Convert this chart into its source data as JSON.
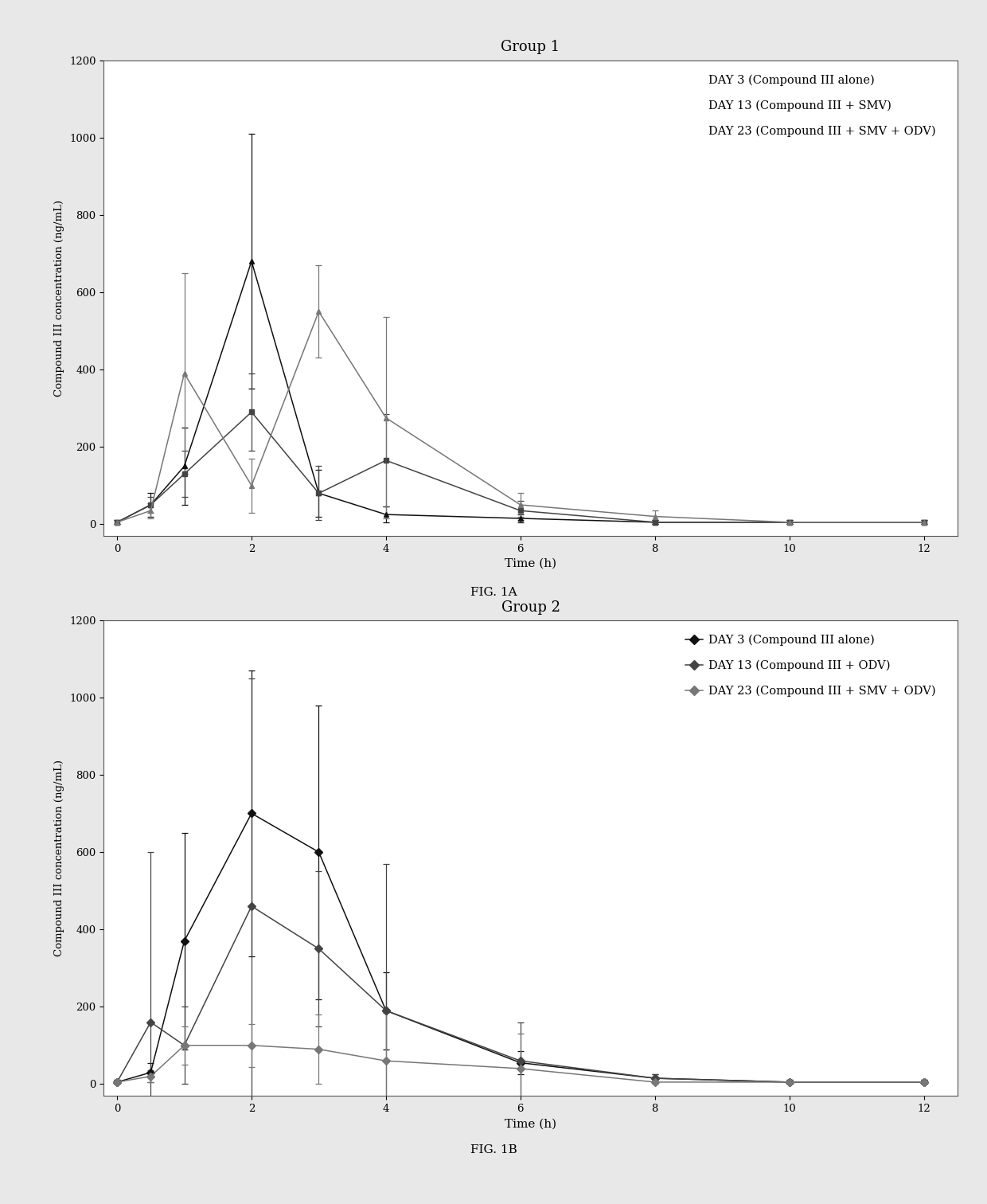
{
  "fig1a": {
    "title": "Group 1",
    "xlabel": "Time (h)",
    "ylabel": "Compound III concentration (ng/mL)",
    "xlim": [
      -0.2,
      12.5
    ],
    "ylim": [
      -30,
      1200
    ],
    "yticks": [
      0,
      200,
      400,
      600,
      800,
      1000,
      1200
    ],
    "xticks": [
      0,
      2,
      4,
      6,
      8,
      10,
      12
    ],
    "series": [
      {
        "label": "DAY 3 (Compound III alone)",
        "x": [
          0,
          0.5,
          1,
          2,
          3,
          4,
          6,
          8,
          10,
          12
        ],
        "y": [
          5,
          50,
          150,
          680,
          80,
          25,
          15,
          5,
          5,
          5
        ],
        "yerr": [
          5,
          30,
          100,
          330,
          60,
          20,
          10,
          5,
          5,
          5
        ],
        "marker": "^",
        "linestyle": "-",
        "color": "#111111"
      },
      {
        "label": "DAY 13 (Compound III + SMV)",
        "x": [
          0,
          0.5,
          1,
          2,
          3,
          4,
          6,
          8,
          10,
          12
        ],
        "y": [
          5,
          50,
          130,
          290,
          80,
          165,
          35,
          5,
          5,
          5
        ],
        "yerr": [
          5,
          20,
          60,
          100,
          70,
          120,
          25,
          5,
          5,
          5
        ],
        "marker": "s",
        "linestyle": "-",
        "color": "#444444"
      },
      {
        "label": "DAY 23 (Compound III + SMV + ODV)",
        "x": [
          0,
          0.5,
          1,
          2,
          3,
          4,
          6,
          8,
          10,
          12
        ],
        "y": [
          5,
          35,
          390,
          100,
          550,
          275,
          50,
          20,
          5,
          5
        ],
        "yerr": [
          5,
          20,
          260,
          70,
          120,
          260,
          30,
          15,
          5,
          5
        ],
        "marker": "^",
        "linestyle": "-",
        "color": "#777777"
      }
    ],
    "legend_labels": [
      "DAY 3 (Compound III alone)",
      "DAY 13 (Compound III + SMV)",
      "DAY 23 (Compound III + SMV + ODV)"
    ],
    "show_legend_markers": false,
    "fig_label": "FIG. 1A"
  },
  "fig1b": {
    "title": "Group 2",
    "xlabel": "Time (h)",
    "ylabel": "Compound III concentration (ng/mL)",
    "xlim": [
      -0.2,
      12.5
    ],
    "ylim": [
      -30,
      1200
    ],
    "yticks": [
      0,
      200,
      400,
      600,
      800,
      1000,
      1200
    ],
    "xticks": [
      0,
      2,
      4,
      6,
      8,
      10,
      12
    ],
    "series": [
      {
        "label": "DAY 3 (Compound III alone)",
        "x": [
          0,
          0.5,
          1,
          2,
          3,
          4,
          6,
          8,
          10,
          12
        ],
        "y": [
          5,
          30,
          370,
          700,
          600,
          190,
          55,
          15,
          5,
          5
        ],
        "yerr": [
          5,
          25,
          280,
          370,
          380,
          100,
          30,
          10,
          5,
          5
        ],
        "marker": "D",
        "linestyle": "-",
        "color": "#111111"
      },
      {
        "label": "DAY 13 (Compound III + ODV)",
        "x": [
          0,
          0.5,
          1,
          2,
          3,
          4,
          6,
          8,
          10,
          12
        ],
        "y": [
          5,
          160,
          100,
          460,
          350,
          190,
          60,
          15,
          5,
          5
        ],
        "yerr": [
          5,
          440,
          100,
          590,
          200,
          380,
          100,
          10,
          5,
          5
        ],
        "marker": "D",
        "linestyle": "-",
        "color": "#444444"
      },
      {
        "label": "DAY 23 (Compound III + SMV + ODV)",
        "x": [
          0,
          0.5,
          1,
          2,
          3,
          4,
          6,
          8,
          10,
          12
        ],
        "y": [
          5,
          20,
          100,
          100,
          90,
          60,
          40,
          5,
          5,
          5
        ],
        "yerr": [
          5,
          15,
          50,
          55,
          90,
          125,
          90,
          5,
          5,
          5
        ],
        "marker": "D",
        "linestyle": "-",
        "color": "#777777"
      }
    ],
    "legend_labels": [
      "DAY 3 (Compound III alone)",
      "DAY 13 (Compound III + ODV)",
      "DAY 23 (Compound III + SMV + ODV)"
    ],
    "show_legend_markers": true,
    "fig_label": "FIG. 1B"
  },
  "page_bg": "#e8e8e8",
  "panel_bg": "#ffffff",
  "text_color": "#000000",
  "fontfamily": "serif"
}
